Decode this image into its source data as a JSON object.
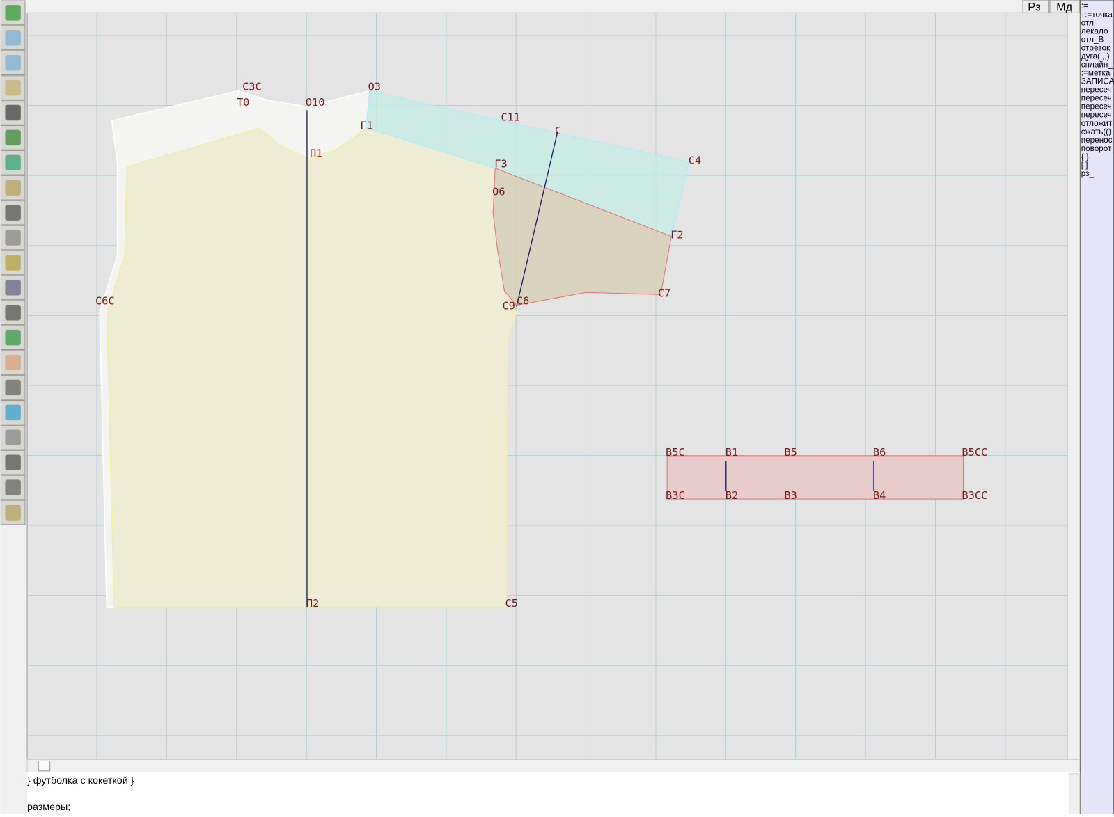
{
  "top_buttons": [
    "Рз",
    "Мд"
  ],
  "points": [
    "С3С",
    "Т0",
    "О10",
    "О3",
    "Г1",
    "П1",
    "С11",
    "С",
    "С4",
    "Г3",
    "О6",
    "Г2",
    "С7",
    "С6",
    "С9",
    "С6С",
    "П2",
    "С5",
    "В5С",
    "В1",
    "В5",
    "В6",
    "В5СС",
    "В3С",
    "В2",
    "В3",
    "В4",
    "В3СС"
  ],
  "command_list": [
    ":=",
    "т:=точка",
    "отл",
    "лекало",
    "отл_В",
    "отрезок",
    "дуга(,,,)",
    "сплайн_",
    ":=метка",
    "ЗАПИСА",
    "пересеч",
    "пересеч",
    "пересеч",
    "пересеч",
    "отложит",
    "сжать(()",
    "перенос",
    "поворот",
    "{ }",
    "[ ]",
    "рз_"
  ],
  "editor_lines": [
    "} футболка с кокеткой }",
    "размеры;"
  ]
}
